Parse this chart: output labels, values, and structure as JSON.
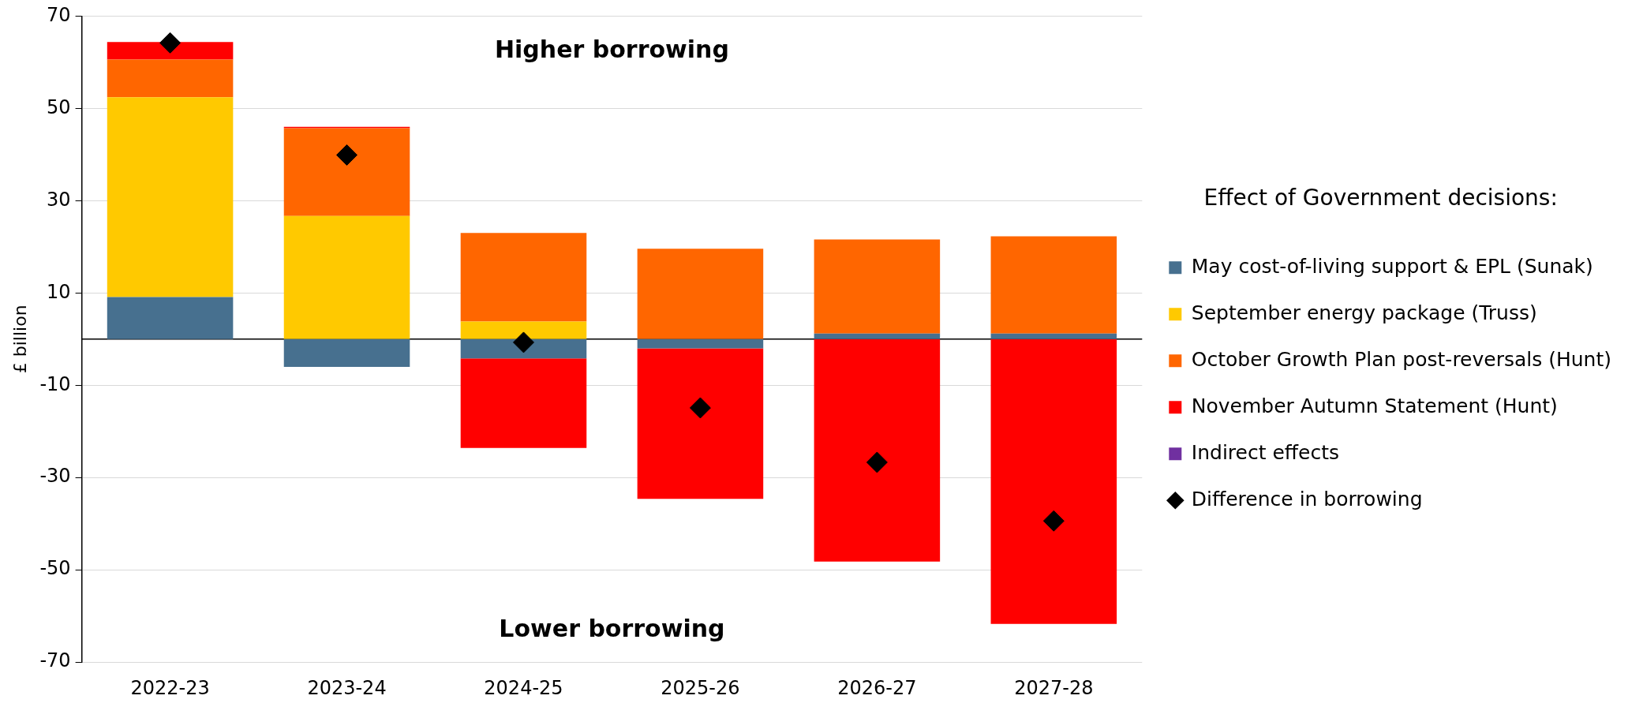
{
  "chart_data": {
    "type": "bar",
    "stacked": true,
    "ylabel": "£ billion",
    "legend_title": "Effect of Government decisions:",
    "categories": [
      "2022-23",
      "2023-24",
      "2024-25",
      "2025-26",
      "2026-27",
      "2027-28"
    ],
    "series": [
      {
        "name": "May cost-of-living support & EPL (Sunak)",
        "color": "#47708f",
        "values": [
          9.1,
          -6.0,
          -4.2,
          -2.0,
          1.2,
          1.2
        ]
      },
      {
        "name": "September energy package (Truss)",
        "color": "#ffc900",
        "values": [
          43.3,
          26.7,
          3.8,
          null,
          null,
          null
        ]
      },
      {
        "name": "October Growth Plan post-reversals (Hunt)",
        "color": "#ff6600",
        "values": [
          8.2,
          19.0,
          19.2,
          19.6,
          20.4,
          21.1
        ]
      },
      {
        "name": "November Autumn Statement (Hunt)",
        "color": "#ff0000",
        "values": [
          3.8,
          0.3,
          -19.4,
          -32.6,
          -48.2,
          -61.7
        ]
      },
      {
        "name": "Indirect effects",
        "color": "#7030a0",
        "values": [
          null,
          null,
          null,
          null,
          null,
          null
        ]
      },
      {
        "name": "Difference in borrowing",
        "type": "scatter",
        "marker": "diamond",
        "color": "#000000",
        "values": [
          64.2,
          39.9,
          -0.7,
          -14.9,
          -26.7,
          -39.4
        ]
      }
    ],
    "ylim": [
      -70,
      70
    ],
    "yticks": [
      -70,
      -50,
      -30,
      -10,
      10,
      30,
      50,
      70
    ],
    "grid": "y",
    "legend": "right",
    "annotations": [
      "Higher borrowing",
      "Lower borrowing"
    ]
  }
}
